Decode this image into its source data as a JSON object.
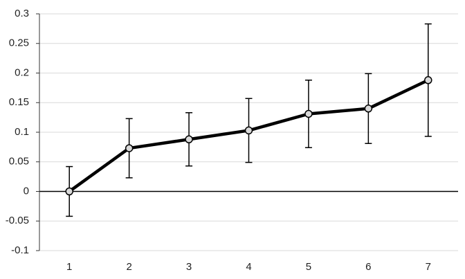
{
  "chart_data": {
    "type": "line",
    "categories": [
      "1",
      "2",
      "3",
      "4",
      "5",
      "6",
      "7"
    ],
    "values": [
      0,
      0.073,
      0.088,
      0.103,
      0.131,
      0.14,
      0.188
    ],
    "errors": [
      0.042,
      0.05,
      0.045,
      0.054,
      0.057,
      0.059,
      0.095
    ],
    "color": "#000000",
    "ylim": [
      -0.1,
      0.3
    ],
    "yticks": [
      -0.1,
      -0.05,
      0,
      0.05,
      0.1,
      0.15,
      0.2,
      0.25,
      0.3
    ],
    "grid": true
  }
}
